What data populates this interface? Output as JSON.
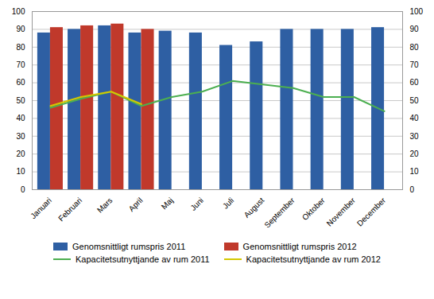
{
  "chart_data": {
    "type": "bar",
    "categories": [
      "Januari",
      "Februari",
      "Mars",
      "April",
      "Maj",
      "Juni",
      "Juli",
      "August",
      "September",
      "Oktober",
      "November",
      "December"
    ],
    "series": [
      {
        "name": "Genomsnittligt rumspris 2011",
        "type": "bar",
        "color": "#2e5fa3",
        "values": [
          88,
          90,
          92,
          88,
          89,
          88,
          81,
          83,
          90,
          90,
          90,
          91
        ]
      },
      {
        "name": "Genomsnittligt rumspris 2012",
        "type": "bar",
        "color": "#c0392b",
        "values": [
          91,
          92,
          93,
          90,
          null,
          null,
          null,
          null,
          null,
          null,
          null,
          null
        ]
      },
      {
        "name": "Kapacitetsutnyttjande av rum 2011",
        "type": "line",
        "color": "#4caf50",
        "axis": "y2",
        "values": [
          46,
          51,
          55,
          47,
          52,
          55,
          61,
          59,
          57,
          52,
          52,
          44
        ]
      },
      {
        "name": "Kapacitetsutnyttjande av rum 2012",
        "type": "line",
        "color": "#d4c800",
        "axis": "y2",
        "values": [
          47,
          52,
          55,
          48,
          null,
          null,
          null,
          null,
          null,
          null,
          null,
          null
        ]
      }
    ],
    "ylim": [
      0,
      100
    ],
    "yticks": [
      0,
      10,
      20,
      30,
      40,
      50,
      60,
      70,
      80,
      90,
      100
    ],
    "y2lim": [
      0,
      100
    ],
    "y2ticks": [
      0,
      10,
      20,
      30,
      40,
      50,
      60,
      70,
      80,
      90,
      100
    ],
    "grid": true,
    "legend": "bottom"
  }
}
